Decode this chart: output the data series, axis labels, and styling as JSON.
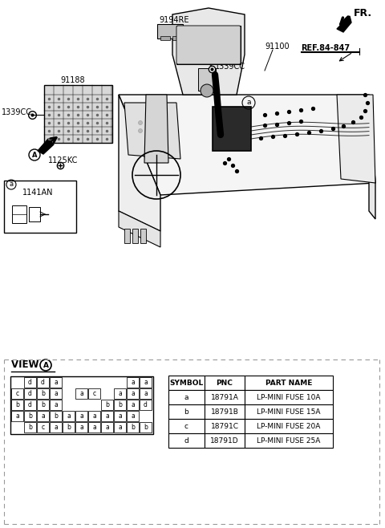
{
  "bg_color": "#ffffff",
  "fuse_grid": {
    "rows": [
      [
        "",
        "d",
        "d",
        "a",
        "",
        "",
        "",
        "",
        "",
        "a",
        "a"
      ],
      [
        "c",
        "d",
        "b",
        "a",
        "",
        "a",
        "c",
        "",
        "a",
        "a",
        "a"
      ],
      [
        "b",
        "d",
        "b",
        "a",
        "",
        "",
        "",
        "b",
        "b",
        "a",
        "d"
      ],
      [
        "a",
        "b",
        "a",
        "b",
        "a",
        "a",
        "a",
        "a",
        "a",
        "a",
        ""
      ],
      [
        "",
        "b",
        "c",
        "a",
        "b",
        "a",
        "a",
        "a",
        "a",
        "b",
        "b"
      ]
    ]
  },
  "table_headers": [
    "SYMBOL",
    "PNC",
    "PART NAME"
  ],
  "table_rows": [
    [
      "a",
      "18791A",
      "LP-MINI FUSE 10A"
    ],
    [
      "b",
      "18791B",
      "LP-MINI FUSE 15A"
    ],
    [
      "c",
      "18791C",
      "LP-MINI FUSE 20A"
    ],
    [
      "d",
      "18791D",
      "LP-MINI FUSE 25A"
    ]
  ]
}
